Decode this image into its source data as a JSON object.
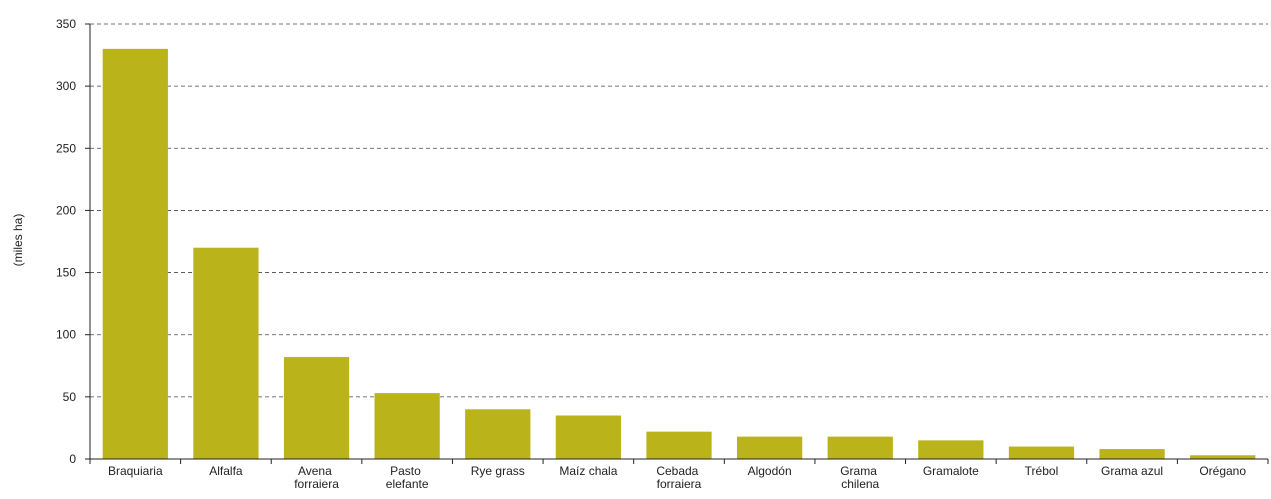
{
  "chart_data": {
    "type": "bar",
    "y_label": "(miles ha)",
    "categories": [
      "Braquiaria",
      "Alfalfa",
      "Avena forraiera",
      "Pasto elefante",
      "Rye grass",
      "Maíz chala",
      "Cebada forraiera",
      "Algodón",
      "Grama chilena",
      "Gramalote",
      "Trébol",
      "Grama azul",
      "Orégano"
    ],
    "values": [
      330,
      170,
      82,
      53,
      40,
      35,
      22,
      18,
      18,
      15,
      10,
      8,
      3
    ],
    "color": "#bab31a",
    "ylim": [
      0,
      350
    ],
    "yticks": [
      0,
      50,
      100,
      150,
      200,
      250,
      300,
      350
    ],
    "grid": true
  }
}
